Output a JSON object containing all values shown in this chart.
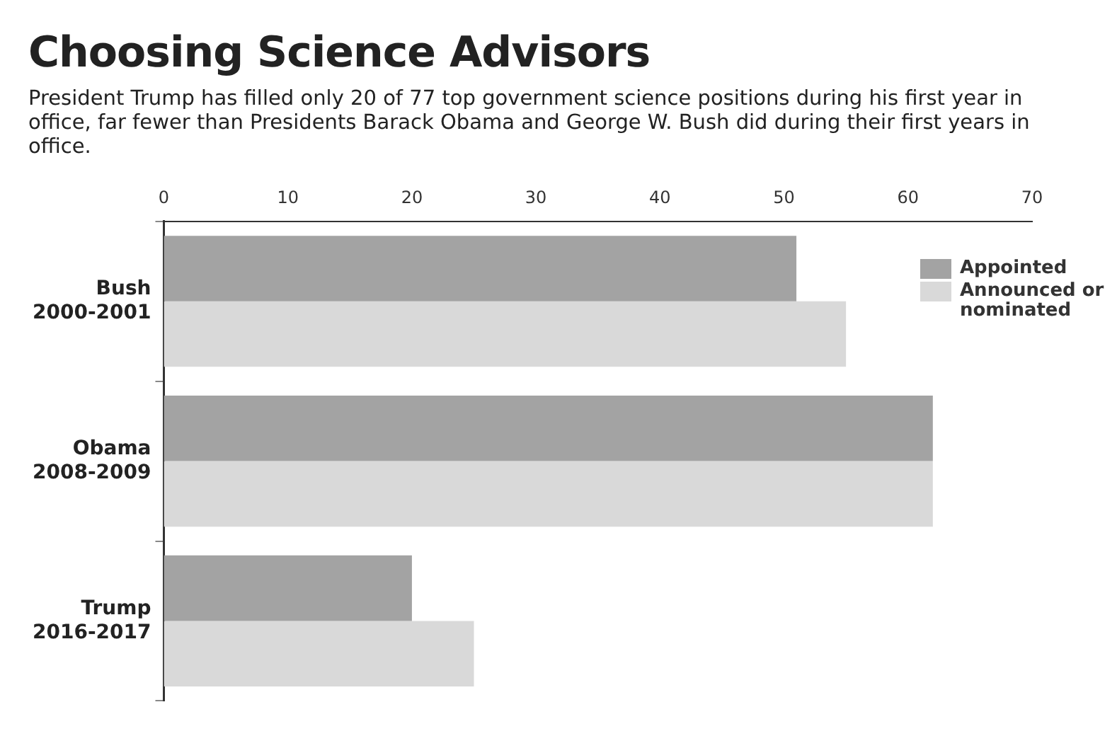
{
  "chart_data": {
    "type": "bar",
    "orientation": "horizontal",
    "title": "Choosing Science Advisors",
    "subtitle": "President Trump has filled only 20 of 77 top government science positions during his first year in office, far fewer than Presidents Barack Obama and George W. Bush did during their first years in office.",
    "categories": [
      "Bush 2000-2001",
      "Obama 2008-2009",
      "Trump 2016-2017"
    ],
    "series": [
      {
        "name": "Appointed",
        "color": "#a3a3a3",
        "values": [
          51,
          62,
          20
        ]
      },
      {
        "name": "Announced or nominated",
        "color": "#d9d9d9",
        "values": [
          55,
          62,
          25
        ]
      }
    ],
    "xlim": [
      0,
      70
    ],
    "xticks": [
      0,
      10,
      20,
      30,
      40,
      50,
      60,
      70
    ],
    "grid": false,
    "legend": "top right"
  }
}
